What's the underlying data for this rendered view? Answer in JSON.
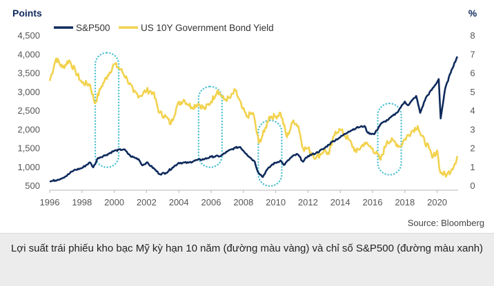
{
  "chart_data": {
    "type": "line",
    "left_axis_title": "Points",
    "right_axis_title": "%",
    "x_ticks": [
      "1996",
      "1998",
      "2000",
      "2002",
      "2004",
      "2006",
      "2008",
      "2010",
      "2012",
      "2014",
      "2016",
      "2018",
      "2020"
    ],
    "x_range": [
      1996,
      2021.3
    ],
    "left_ticks": [
      "500",
      "1,000",
      "1,500",
      "2,000",
      "2,500",
      "3,000",
      "3,500",
      "4,000",
      "4,500"
    ],
    "left_range": [
      500,
      4500
    ],
    "right_ticks": [
      "0",
      "1",
      "2",
      "3",
      "4",
      "5",
      "6",
      "7",
      "8"
    ],
    "right_range": [
      0,
      8
    ],
    "source": "Source: Bloomberg",
    "series": [
      {
        "name": "S&P500",
        "axis": "left",
        "color": "#0e2a5c",
        "points": [
          [
            1996.0,
            620
          ],
          [
            1996.5,
            670
          ],
          [
            1997.0,
            760
          ],
          [
            1997.5,
            920
          ],
          [
            1998.0,
            980
          ],
          [
            1998.5,
            1130
          ],
          [
            1998.7,
            1000
          ],
          [
            1999.0,
            1250
          ],
          [
            1999.5,
            1330
          ],
          [
            2000.0,
            1440
          ],
          [
            2000.6,
            1480
          ],
          [
            2001.0,
            1300
          ],
          [
            2001.5,
            1220
          ],
          [
            2001.75,
            1050
          ],
          [
            2002.0,
            1130
          ],
          [
            2002.5,
            950
          ],
          [
            2002.8,
            820
          ],
          [
            2003.2,
            850
          ],
          [
            2003.6,
            990
          ],
          [
            2004.0,
            1120
          ],
          [
            2004.6,
            1120
          ],
          [
            2005.0,
            1180
          ],
          [
            2005.6,
            1220
          ],
          [
            2006.0,
            1280
          ],
          [
            2006.6,
            1300
          ],
          [
            2007.0,
            1420
          ],
          [
            2007.5,
            1520
          ],
          [
            2007.8,
            1540
          ],
          [
            2008.2,
            1350
          ],
          [
            2008.7,
            1150
          ],
          [
            2008.9,
            880
          ],
          [
            2009.2,
            740
          ],
          [
            2009.4,
            900
          ],
          [
            2009.8,
            1080
          ],
          [
            2010.3,
            1180
          ],
          [
            2010.5,
            1060
          ],
          [
            2011.0,
            1280
          ],
          [
            2011.35,
            1350
          ],
          [
            2011.7,
            1150
          ],
          [
            2012.0,
            1300
          ],
          [
            2012.5,
            1380
          ],
          [
            2013.0,
            1500
          ],
          [
            2013.5,
            1680
          ],
          [
            2014.0,
            1800
          ],
          [
            2014.5,
            1950
          ],
          [
            2015.0,
            2050
          ],
          [
            2015.5,
            2100
          ],
          [
            2015.7,
            1920
          ],
          [
            2016.1,
            1880
          ],
          [
            2016.5,
            2150
          ],
          [
            2017.0,
            2280
          ],
          [
            2017.5,
            2450
          ],
          [
            2018.0,
            2750
          ],
          [
            2018.2,
            2650
          ],
          [
            2018.7,
            2900
          ],
          [
            2018.95,
            2450
          ],
          [
            2019.3,
            2850
          ],
          [
            2019.9,
            3200
          ],
          [
            2020.1,
            3350
          ],
          [
            2020.22,
            2300
          ],
          [
            2020.5,
            3100
          ],
          [
            2020.9,
            3600
          ],
          [
            2021.25,
            3950
          ]
        ]
      },
      {
        "name": "US 10Y Government Bond Yield",
        "axis": "right",
        "color": "#f2d24e",
        "points": [
          [
            1996.0,
            5.6
          ],
          [
            1996.4,
            6.8
          ],
          [
            1996.8,
            6.3
          ],
          [
            1997.2,
            6.7
          ],
          [
            1997.6,
            6.1
          ],
          [
            1998.0,
            5.5
          ],
          [
            1998.5,
            5.4
          ],
          [
            1998.8,
            4.4
          ],
          [
            1999.2,
            5.3
          ],
          [
            1999.6,
            5.9
          ],
          [
            2000.0,
            6.5
          ],
          [
            2000.4,
            6.2
          ],
          [
            2000.8,
            5.7
          ],
          [
            2001.2,
            5.0
          ],
          [
            2001.6,
            4.8
          ],
          [
            2002.0,
            5.1
          ],
          [
            2002.4,
            5.0
          ],
          [
            2002.8,
            3.9
          ],
          [
            2003.2,
            3.7
          ],
          [
            2003.5,
            3.3
          ],
          [
            2003.9,
            4.3
          ],
          [
            2004.3,
            4.6
          ],
          [
            2004.8,
            4.2
          ],
          [
            2005.2,
            4.4
          ],
          [
            2005.6,
            4.1
          ],
          [
            2006.0,
            4.5
          ],
          [
            2006.4,
            5.1
          ],
          [
            2006.8,
            4.6
          ],
          [
            2007.2,
            4.7
          ],
          [
            2007.5,
            5.1
          ],
          [
            2007.9,
            4.2
          ],
          [
            2008.2,
            3.7
          ],
          [
            2008.6,
            3.9
          ],
          [
            2008.95,
            2.3
          ],
          [
            2009.3,
            2.9
          ],
          [
            2009.6,
            3.7
          ],
          [
            2010.0,
            3.7
          ],
          [
            2010.3,
            3.9
          ],
          [
            2010.7,
            2.6
          ],
          [
            2011.1,
            3.5
          ],
          [
            2011.4,
            3.2
          ],
          [
            2011.7,
            2.0
          ],
          [
            2012.0,
            2.0
          ],
          [
            2012.5,
            1.5
          ],
          [
            2013.0,
            1.9
          ],
          [
            2013.3,
            1.7
          ],
          [
            2013.7,
            2.9
          ],
          [
            2014.0,
            3.0
          ],
          [
            2014.5,
            2.5
          ],
          [
            2015.0,
            1.8
          ],
          [
            2015.5,
            2.3
          ],
          [
            2016.0,
            2.0
          ],
          [
            2016.5,
            1.4
          ],
          [
            2016.9,
            2.4
          ],
          [
            2017.3,
            2.4
          ],
          [
            2017.7,
            2.1
          ],
          [
            2018.0,
            2.5
          ],
          [
            2018.4,
            2.9
          ],
          [
            2018.8,
            3.2
          ],
          [
            2019.0,
            2.7
          ],
          [
            2019.5,
            2.0
          ],
          [
            2019.7,
            1.5
          ],
          [
            2020.0,
            1.9
          ],
          [
            2020.2,
            0.7
          ],
          [
            2020.6,
            0.6
          ],
          [
            2020.9,
            0.9
          ],
          [
            2021.1,
            1.2
          ],
          [
            2021.25,
            1.6
          ]
        ]
      }
    ],
    "highlights": [
      {
        "x_center": 1999.55,
        "y_top": 7.1,
        "y_bottom": 1.0
      },
      {
        "x_center": 2005.95,
        "y_top": 5.3,
        "y_bottom": 1.0
      },
      {
        "x_center": 2009.65,
        "y_top": 3.5,
        "y_bottom": 0.0
      },
      {
        "x_center": 2017.05,
        "y_top": 4.4,
        "y_bottom": 0.6
      }
    ],
    "grid": false
  },
  "caption": "Lợi suất trái phiếu kho bạc Mỹ kỳ hạn 10 năm (đường màu vàng) và chỉ số S&P500 (đường màu xanh)"
}
